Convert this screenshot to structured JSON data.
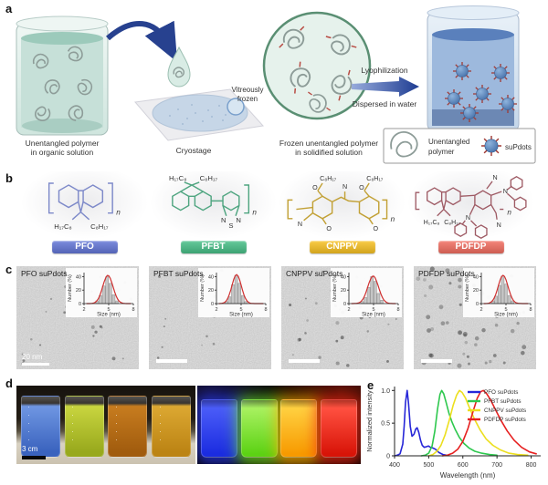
{
  "panel_a": {
    "label": "a",
    "labels": {
      "beaker1_l1": "Unentangled polymer",
      "beaker1_l2": "in organic solution",
      "cryostage": "Cryostage",
      "vitreous_l1": "Vitreously",
      "vitreous_l2": "frozen",
      "frozen_l1": "Frozen unentangled polymer",
      "frozen_l2": "in solidified solution",
      "arrow_top": "Lyophilization",
      "arrow_bottom": "Dispersed in water",
      "legend_poly_l1": "Unentangled",
      "legend_poly_l2": "polymer",
      "legend_supdots": "suPdots"
    }
  },
  "panel_b": {
    "label": "b",
    "polymers": [
      {
        "name": "PFO",
        "pill_color": "#5464b6",
        "line_color": "#7d89c9",
        "labels": [
          "H₁₇C₈",
          "C₈H₁₇",
          "n"
        ]
      },
      {
        "name": "PFBT",
        "pill_color": "#3da273",
        "line_color": "#4fa580",
        "labels": [
          "H₁₇C₈",
          "C₈H₁₇",
          "N",
          "S",
          "N",
          "n"
        ]
      },
      {
        "name": "CNPPV",
        "pill_color": "#d2a41e",
        "line_color": "#c2a136",
        "labels": [
          "C₈H₁₇",
          "C₈H₁₇",
          "O",
          "O",
          "O",
          "O",
          "N",
          "N",
          "n"
        ]
      },
      {
        "name": "PDFDP",
        "pill_color": "#cd5d52",
        "line_color": "#9e5a64",
        "labels": [
          "H₁₇C₈",
          "C₈H₁₇",
          "N",
          "N",
          "N",
          "N",
          "n"
        ]
      }
    ]
  },
  "panel_c": {
    "label": "c",
    "tems": [
      {
        "label": "PFO suPdots",
        "scale_text": "20 nm"
      },
      {
        "label": "PFBT suPdots"
      },
      {
        "label": "CNPPV suPdots"
      },
      {
        "label": "PDFDP suPdots"
      }
    ]
  },
  "panel_d": {
    "label": "d",
    "scale_text": "3 cm",
    "white_light_beakers": [
      {
        "top": "#6f96e2",
        "bottom": "#3a63be"
      },
      {
        "top": "#c9d53f",
        "bottom": "#98a91d"
      },
      {
        "top": "#c77c1f",
        "bottom": "#a15c0e"
      },
      {
        "top": "#dca832",
        "bottom": "#bc8414"
      }
    ],
    "uv_beakers": [
      {
        "top": "#4a5cf8",
        "bottom": "#1b2ce0",
        "glow": "#2a3cf5"
      },
      {
        "top": "#a8f160",
        "bottom": "#5cd214",
        "glow": "#6ee62c"
      },
      {
        "top": "#ffd040",
        "bottom": "#f79a00",
        "glow": "#ffb400"
      },
      {
        "top": "#ff5040",
        "bottom": "#d81408",
        "glow": "#f02818"
      }
    ]
  },
  "panel_e": {
    "label": "e"
  },
  "chart_data": [
    {
      "id": "pfo_size_hist",
      "type": "bar",
      "title": "PFO suPdots size distribution",
      "xlabel": "Size (nm)",
      "ylabel": "Number (%)",
      "xlim": [
        2,
        8
      ],
      "ylim": [
        0,
        46
      ],
      "xticks": [
        2,
        5,
        8
      ],
      "yticks": [
        0,
        20,
        40
      ],
      "categories": [
        3.6,
        4.0,
        4.4,
        4.8,
        5.2,
        5.6,
        6.0
      ],
      "values": [
        4,
        12,
        26,
        40,
        30,
        13,
        4
      ],
      "fit": {
        "mean": 4.9,
        "sigma": 0.62,
        "amp": 42,
        "color": "#d03030"
      },
      "bar_color": "#c6c6c6"
    },
    {
      "id": "pfbt_size_hist",
      "type": "bar",
      "title": "PFBT suPdots size distribution",
      "xlabel": "Size (nm)",
      "ylabel": "Number (%)",
      "xlim": [
        2,
        8
      ],
      "ylim": [
        0,
        46
      ],
      "xticks": [
        2,
        5,
        8
      ],
      "yticks": [
        0,
        20,
        40
      ],
      "categories": [
        3.2,
        3.6,
        4.0,
        4.4,
        4.8,
        5.2,
        5.6
      ],
      "values": [
        3,
        10,
        28,
        42,
        30,
        12,
        3
      ],
      "fit": {
        "mean": 4.45,
        "sigma": 0.58,
        "amp": 43,
        "color": "#d03030"
      },
      "bar_color": "#c6c6c6"
    },
    {
      "id": "cnppv_size_hist",
      "type": "bar",
      "title": "CNPPV suPdots size distribution",
      "xlabel": "Size (nm)",
      "ylabel": "Number (%)",
      "xlim": [
        2,
        8
      ],
      "ylim": [
        0,
        46
      ],
      "xticks": [
        2,
        5,
        8
      ],
      "yticks": [
        0,
        20,
        40
      ],
      "categories": [
        3.6,
        4.0,
        4.4,
        4.8,
        5.2,
        5.6,
        6.0
      ],
      "values": [
        3,
        9,
        24,
        40,
        33,
        15,
        5
      ],
      "fit": {
        "mean": 4.95,
        "sigma": 0.65,
        "amp": 41,
        "color": "#d03030"
      },
      "bar_color": "#c6c6c6"
    },
    {
      "id": "pdfdp_size_hist",
      "type": "bar",
      "title": "PDFDP suPdots size distribution",
      "xlabel": "Size (nm)",
      "ylabel": "Number (%)",
      "xlim": [
        2,
        8
      ],
      "ylim": [
        0,
        46
      ],
      "xticks": [
        2,
        5,
        8
      ],
      "yticks": [
        0,
        20,
        40
      ],
      "categories": [
        3.4,
        3.8,
        4.2,
        4.6,
        5.0,
        5.4,
        5.8
      ],
      "values": [
        4,
        11,
        27,
        41,
        29,
        12,
        4
      ],
      "fit": {
        "mean": 4.65,
        "sigma": 0.6,
        "amp": 42,
        "color": "#d03030"
      },
      "bar_color": "#c6c6c6"
    },
    {
      "id": "emission_spectra",
      "type": "line",
      "title": "",
      "xlabel": "Wavelength (nm)",
      "ylabel": "Normalized intensity",
      "xlim": [
        400,
        828
      ],
      "ylim": [
        0,
        1.06
      ],
      "xticks": [
        400,
        500,
        600,
        700,
        800
      ],
      "xtick_labels": [
        "400",
        "500",
        "600",
        "700",
        "800"
      ],
      "yticks": [
        0,
        0.5,
        1.0
      ],
      "ytick_labels": [
        "0",
        "0.5",
        "1.0"
      ],
      "legend_position": "top-right",
      "grid": false,
      "series": [
        {
          "name": "PFO suPdots",
          "color": "#2626d8",
          "x": [
            400,
            408,
            416,
            424,
            428,
            432,
            437,
            441,
            446,
            451,
            457,
            462,
            466,
            471,
            476,
            481,
            487,
            493,
            499,
            505,
            512,
            520,
            530,
            542,
            552
          ],
          "y": [
            0,
            0.01,
            0.03,
            0.18,
            0.45,
            0.82,
            1.0,
            0.8,
            0.45,
            0.3,
            0.33,
            0.41,
            0.43,
            0.36,
            0.24,
            0.16,
            0.13,
            0.14,
            0.15,
            0.13,
            0.12,
            0.1,
            0.05,
            0.02,
            0.01
          ]
        },
        {
          "name": "PFBT suPdots",
          "color": "#2ec84e",
          "x": [
            478,
            490,
            500,
            510,
            518,
            526,
            533,
            538,
            544,
            551,
            559,
            568,
            578,
            590,
            603,
            618,
            635,
            655,
            678,
            700
          ],
          "y": [
            0,
            0.01,
            0.04,
            0.15,
            0.38,
            0.72,
            0.94,
            1.0,
            0.95,
            0.82,
            0.66,
            0.52,
            0.4,
            0.28,
            0.19,
            0.12,
            0.07,
            0.04,
            0.02,
            0.01
          ]
        },
        {
          "name": "CNPPV suPdots",
          "color": "#ecdf1e",
          "x": [
            500,
            512,
            524,
            536,
            548,
            560,
            572,
            582,
            590,
            598,
            608,
            620,
            634,
            650,
            668,
            688,
            710,
            735,
            760,
            790
          ],
          "y": [
            0,
            0.02,
            0.07,
            0.16,
            0.32,
            0.54,
            0.78,
            0.93,
            1.0,
            0.97,
            0.88,
            0.73,
            0.56,
            0.4,
            0.26,
            0.16,
            0.09,
            0.04,
            0.02,
            0.01
          ]
        },
        {
          "name": "PDFDP suPdots",
          "color": "#e62020",
          "x": [
            540,
            555,
            570,
            585,
            600,
            615,
            630,
            642,
            652,
            660,
            670,
            682,
            696,
            712,
            730,
            750,
            772,
            795,
            815
          ],
          "y": [
            0,
            0.01,
            0.04,
            0.1,
            0.22,
            0.42,
            0.68,
            0.88,
            0.98,
            1.0,
            0.95,
            0.85,
            0.7,
            0.54,
            0.38,
            0.24,
            0.13,
            0.06,
            0.03
          ]
        }
      ]
    }
  ]
}
